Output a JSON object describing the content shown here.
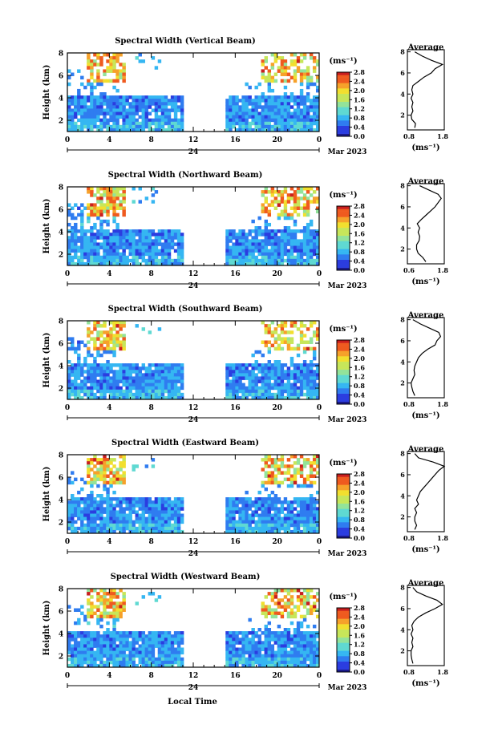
{
  "figure": {
    "xlabel": "Local Time",
    "date_label": "Mar 2023",
    "day_label": "24",
    "colorbar_unit": "(ms⁻¹)",
    "profile_title": "Average",
    "profile_xlabel": "(ms⁻¹)",
    "ylabel": "Height (km)"
  },
  "chart_data": [
    {
      "type": "heatmap",
      "title": "Spectral Width (Vertical Beam)",
      "x_ticks": [
        "0",
        "4",
        "8",
        "12",
        "16",
        "20",
        "0"
      ],
      "y_ticks": [
        "2",
        "4",
        "6",
        "8"
      ],
      "xlim": [
        0,
        24
      ],
      "ylim": [
        1,
        8
      ],
      "colorbar_ticks": [
        "0.0",
        "0.4",
        "0.8",
        "1.2",
        "1.6",
        "2.0",
        "2.4",
        "2.8"
      ],
      "colorbar_range": [
        0,
        2.8
      ],
      "data_gap_hours": [
        11.2,
        15.2
      ],
      "profile": {
        "title": "Average",
        "xlim": [
          0.8,
          1.8
        ],
        "x_ticks": [
          "0.8",
          "1.8"
        ],
        "y_ticks": [
          "2",
          "4",
          "6",
          "8"
        ],
        "height_km": [
          0.8,
          1.2,
          1.6,
          2.0,
          2.4,
          2.8,
          3.2,
          3.6,
          4.0,
          4.4,
          4.8,
          5.2,
          5.6,
          6.0,
          6.4,
          6.8,
          7.2,
          7.6,
          8.0
        ],
        "width_ms": [
          1.0,
          1.02,
          0.92,
          0.9,
          0.95,
          0.92,
          0.95,
          0.9,
          0.95,
          0.92,
          0.95,
          1.1,
          1.25,
          1.45,
          1.55,
          1.75,
          1.45,
          1.2,
          1.0
        ]
      }
    },
    {
      "type": "heatmap",
      "title": "Spectral Width (Northward Beam)",
      "x_ticks": [
        "0",
        "4",
        "8",
        "12",
        "16",
        "20",
        "0"
      ],
      "y_ticks": [
        "2",
        "4",
        "6",
        "8"
      ],
      "xlim": [
        0,
        24
      ],
      "ylim": [
        1,
        8
      ],
      "colorbar_ticks": [
        "0.0",
        "0.4",
        "0.8",
        "1.2",
        "1.6",
        "2.0",
        "2.4",
        "2.8"
      ],
      "colorbar_range": [
        0,
        2.8
      ],
      "data_gap_hours": [
        11.2,
        15.2
      ],
      "profile": {
        "title": "Average",
        "xlim": [
          0.6,
          1.8
        ],
        "x_ticks": [
          "0.6",
          "1.8"
        ],
        "y_ticks": [
          "2",
          "4",
          "6",
          "8"
        ],
        "height_km": [
          0.8,
          1.2,
          1.6,
          2.0,
          2.4,
          2.8,
          3.2,
          3.6,
          4.0,
          4.4,
          4.8,
          5.2,
          5.6,
          6.0,
          6.4,
          6.8,
          7.2,
          7.6,
          8.0
        ],
        "width_ms": [
          1.2,
          1.1,
          0.95,
          0.9,
          0.9,
          0.98,
          1.0,
          0.95,
          1.0,
          0.92,
          1.05,
          1.2,
          1.35,
          1.5,
          1.6,
          1.7,
          1.6,
          1.3,
          1.0
        ]
      }
    },
    {
      "type": "heatmap",
      "title": "Spectral Width (Southward Beam)",
      "x_ticks": [
        "0",
        "4",
        "8",
        "12",
        "16",
        "20",
        "0"
      ],
      "y_ticks": [
        "2",
        "4",
        "6",
        "8"
      ],
      "xlim": [
        0,
        24
      ],
      "ylim": [
        1,
        8
      ],
      "colorbar_ticks": [
        "0.0",
        "0.4",
        "0.8",
        "1.2",
        "1.6",
        "2.0",
        "2.4",
        "2.8"
      ],
      "colorbar_range": [
        0,
        2.8
      ],
      "data_gap_hours": [
        11.2,
        15.2
      ],
      "profile": {
        "title": "Average",
        "xlim": [
          0.8,
          1.8
        ],
        "x_ticks": [
          "0.8",
          "1.8"
        ],
        "y_ticks": [
          "2",
          "4",
          "6",
          "8"
        ],
        "height_km": [
          0.8,
          1.2,
          1.6,
          2.0,
          2.4,
          2.8,
          3.2,
          3.6,
          4.0,
          4.4,
          4.8,
          5.2,
          5.6,
          6.0,
          6.4,
          6.8,
          7.2,
          7.6,
          8.0
        ],
        "width_ms": [
          1.0,
          0.95,
          0.92,
          0.9,
          0.95,
          1.0,
          0.98,
          1.0,
          1.05,
          1.1,
          1.2,
          1.35,
          1.55,
          1.6,
          1.7,
          1.65,
          1.4,
          1.15,
          0.95
        ]
      }
    },
    {
      "type": "heatmap",
      "title": "Spectral Width (Eastward Beam)",
      "x_ticks": [
        "0",
        "4",
        "8",
        "12",
        "16",
        "20",
        "0"
      ],
      "y_ticks": [
        "2",
        "4",
        "6",
        "8"
      ],
      "xlim": [
        0,
        24
      ],
      "ylim": [
        1,
        8
      ],
      "colorbar_ticks": [
        "0.0",
        "0.4",
        "0.8",
        "1.2",
        "1.6",
        "2.0",
        "2.4",
        "2.8"
      ],
      "colorbar_range": [
        0,
        2.8
      ],
      "data_gap_hours": [
        11.2,
        15.2
      ],
      "profile": {
        "title": "Average",
        "xlim": [
          0.8,
          1.8
        ],
        "x_ticks": [
          "0.8",
          "1.8"
        ],
        "y_ticks": [
          "2",
          "4",
          "6",
          "8"
        ],
        "height_km": [
          0.8,
          1.2,
          1.6,
          2.0,
          2.4,
          2.8,
          3.2,
          3.6,
          4.0,
          4.4,
          4.8,
          5.2,
          5.6,
          6.0,
          6.4,
          6.8,
          7.2,
          7.6,
          8.0
        ],
        "width_ms": [
          1.0,
          1.05,
          1.0,
          1.0,
          1.05,
          1.0,
          1.1,
          1.05,
          1.1,
          1.15,
          1.25,
          1.35,
          1.45,
          1.55,
          1.65,
          1.8,
          1.5,
          1.1,
          1.0
        ]
      }
    },
    {
      "type": "heatmap",
      "title": "Spectral Width (Westward Beam)",
      "x_ticks": [
        "0",
        "4",
        "8",
        "12",
        "16",
        "20",
        "0"
      ],
      "y_ticks": [
        "2",
        "4",
        "6",
        "8"
      ],
      "xlim": [
        0,
        24
      ],
      "ylim": [
        1,
        8
      ],
      "colorbar_ticks": [
        "0.0",
        "0.4",
        "0.8",
        "1.2",
        "1.6",
        "2.0",
        "2.4",
        "2.8"
      ],
      "colorbar_range": [
        0,
        2.8
      ],
      "data_gap_hours": [
        11.2,
        15.2
      ],
      "profile": {
        "title": "Average",
        "xlim": [
          0.8,
          1.8
        ],
        "x_ticks": [
          "0.8",
          "1.8"
        ],
        "y_ticks": [
          "2",
          "4",
          "6",
          "8"
        ],
        "height_km": [
          0.8,
          1.2,
          1.6,
          2.0,
          2.4,
          2.8,
          3.2,
          3.6,
          4.0,
          4.4,
          4.8,
          5.2,
          5.6,
          6.0,
          6.4,
          6.8,
          7.2,
          7.6,
          8.0
        ],
        "width_ms": [
          0.95,
          0.92,
          0.9,
          0.9,
          0.95,
          0.92,
          0.95,
          0.9,
          0.95,
          0.92,
          0.98,
          1.1,
          1.3,
          1.55,
          1.75,
          1.6,
          1.3,
          1.05,
          0.95
        ]
      }
    }
  ]
}
